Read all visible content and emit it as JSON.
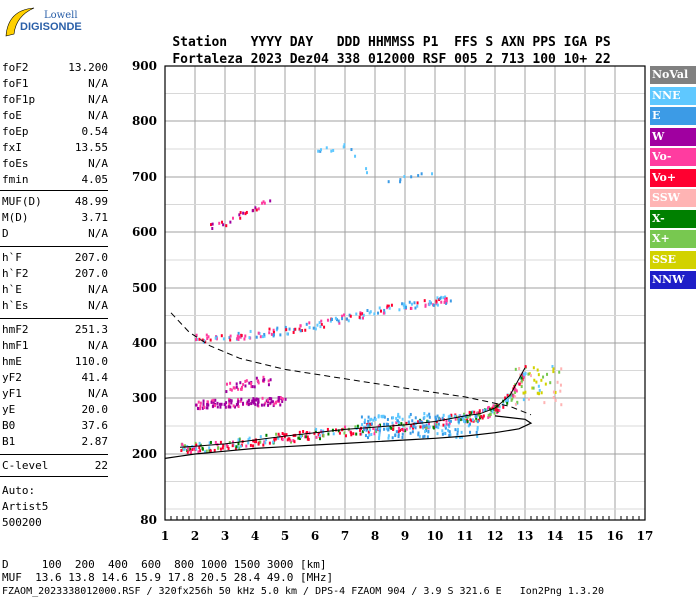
{
  "logo": {
    "line1": "Lowell",
    "line2": "DIGISONDE"
  },
  "header": {
    "labels": [
      "Station",
      "YYYY DAY",
      "DDD HHMMSS P1",
      "FFS S AXN PPS IGA PS"
    ],
    "values": [
      "Fortaleza",
      "2023 Dez04",
      "338 012000 RSF",
      "005 2 713 100 10+ 22"
    ]
  },
  "params": [
    {
      "k": "foF2",
      "v": "13.200"
    },
    {
      "k": "foF1",
      "v": "N/A"
    },
    {
      "k": "foF1p",
      "v": "N/A"
    },
    {
      "k": "foE",
      "v": "N/A"
    },
    {
      "k": "foEp",
      "v": "0.54"
    },
    {
      "k": "fxI",
      "v": "13.55"
    },
    {
      "k": "foEs",
      "v": "N/A"
    },
    {
      "k": "fmin",
      "v": "4.05"
    },
    {
      "k": "MUF(D)",
      "v": "48.99"
    },
    {
      "k": "M(D)",
      "v": "3.71"
    },
    {
      "k": "D",
      "v": "N/A"
    },
    {
      "k": "h`F",
      "v": "207.0"
    },
    {
      "k": "h`F2",
      "v": "207.0"
    },
    {
      "k": "h`E",
      "v": "N/A"
    },
    {
      "k": "h`Es",
      "v": "N/A"
    },
    {
      "k": "hmF2",
      "v": "251.3"
    },
    {
      "k": "hmF1",
      "v": "N/A"
    },
    {
      "k": "hmE",
      "v": "110.0"
    },
    {
      "k": "yF2",
      "v": "41.4"
    },
    {
      "k": "yF1",
      "v": "N/A"
    },
    {
      "k": "yE",
      "v": "20.0"
    },
    {
      "k": "B0",
      "v": "37.6"
    },
    {
      "k": "B1",
      "v": "2.87"
    },
    {
      "k": "C-level",
      "v": "22"
    }
  ],
  "auto": [
    "Auto:",
    "Artist5",
    "500200"
  ],
  "legend": [
    {
      "label": "NoVal",
      "color": "#808080"
    },
    {
      "label": "NNE",
      "color": "#5fc8ff"
    },
    {
      "label": "E",
      "color": "#3c9be6"
    },
    {
      "label": "W",
      "color": "#a000a0"
    },
    {
      "label": "Vo-",
      "color": "#ff3ca0"
    },
    {
      "label": "Vo+",
      "color": "#ff0030"
    },
    {
      "label": "SSW",
      "color": "#ffb4b4"
    },
    {
      "label": "X-",
      "color": "#008000"
    },
    {
      "label": "X+",
      "color": "#78c850"
    },
    {
      "label": "SSE",
      "color": "#d2d200"
    },
    {
      "label": "NNW",
      "color": "#1e1ec8"
    }
  ],
  "footer": {
    "d_row": "D     100  200  400  600  800 1000 1500 3000 [km]",
    "muf_row": "MUF  13.6 13.8 14.6 15.9 17.8 20.5 28.4 49.0 [MHz]",
    "info": "FZAOM_2023338012000.RSF / 320fx256h 50 kHz 5.0 km / DPS-4 FZAOM 904 / 3.9 S 321.6 E   Ion2Png 1.3.20"
  },
  "chart_data": {
    "type": "scatter",
    "x_ticks": [
      1,
      2,
      3,
      4,
      5,
      6,
      7,
      8,
      9,
      10,
      11,
      12,
      13,
      14,
      15,
      16,
      17
    ],
    "y_ticks": [
      80,
      200,
      300,
      400,
      500,
      600,
      700,
      800,
      900
    ],
    "xlim": [
      1,
      17
    ],
    "y_scale": "nonlinear (ionogram virtual height)",
    "grid": true,
    "traces": {
      "o_trace": {
        "x": [
          1.5,
          2,
          3,
          4,
          5,
          6,
          7,
          8,
          9,
          10,
          11,
          11.5,
          12,
          12.5,
          13
        ],
        "y": [
          212,
          214,
          218,
          225,
          232,
          238,
          244,
          248,
          252,
          258,
          268,
          272,
          282,
          305,
          355
        ]
      },
      "o_trace_upper": {
        "x": [
          1.5,
          2,
          3
        ],
        "y": [
          208,
          210,
          212
        ]
      },
      "model_profile": {
        "x": [
          1,
          1.5,
          2,
          3,
          4,
          5,
          6,
          7,
          8,
          9,
          10,
          11,
          12,
          12.8,
          13.2,
          13.0,
          12.0
        ],
        "y": [
          192,
          196,
          200,
          205,
          210,
          213,
          216,
          219,
          222,
          225,
          228,
          232,
          238,
          245,
          255,
          262,
          268
        ]
      },
      "dashed_extrapolation": {
        "x": [
          1.2,
          1.8,
          2.5,
          3.5,
          5,
          7,
          9,
          11,
          12.5,
          13.2
        ],
        "y": [
          455,
          420,
          395,
          372,
          352,
          335,
          318,
          302,
          285,
          270
        ]
      },
      "spread_F2_layer_2hop": {
        "x": [
          2,
          3,
          4,
          5,
          6,
          7,
          8,
          9,
          10,
          10.5
        ],
        "y": [
          410,
          412,
          418,
          425,
          435,
          448,
          460,
          470,
          478,
          482
        ]
      },
      "W_echoes": {
        "x": [
          2,
          2.5,
          3,
          3.5,
          4,
          4.5,
          5
        ],
        "y": [
          290,
          292,
          293,
          294,
          295,
          296,
          297
        ]
      },
      "W_echoes_high": {
        "x": [
          3,
          3.5,
          4,
          4.5
        ],
        "y": [
          320,
          325,
          330,
          335
        ]
      },
      "far_echoes": {
        "x": [
          6,
          6.5,
          7,
          8,
          9,
          10
        ],
        "y": [
          745,
          752,
          760,
          690,
          700,
          712
        ]
      },
      "mid_echoes": {
        "x": [
          2.5,
          3,
          3.5,
          4,
          4.5
        ],
        "y": [
          610,
          620,
          632,
          645,
          660
        ]
      }
    }
  }
}
